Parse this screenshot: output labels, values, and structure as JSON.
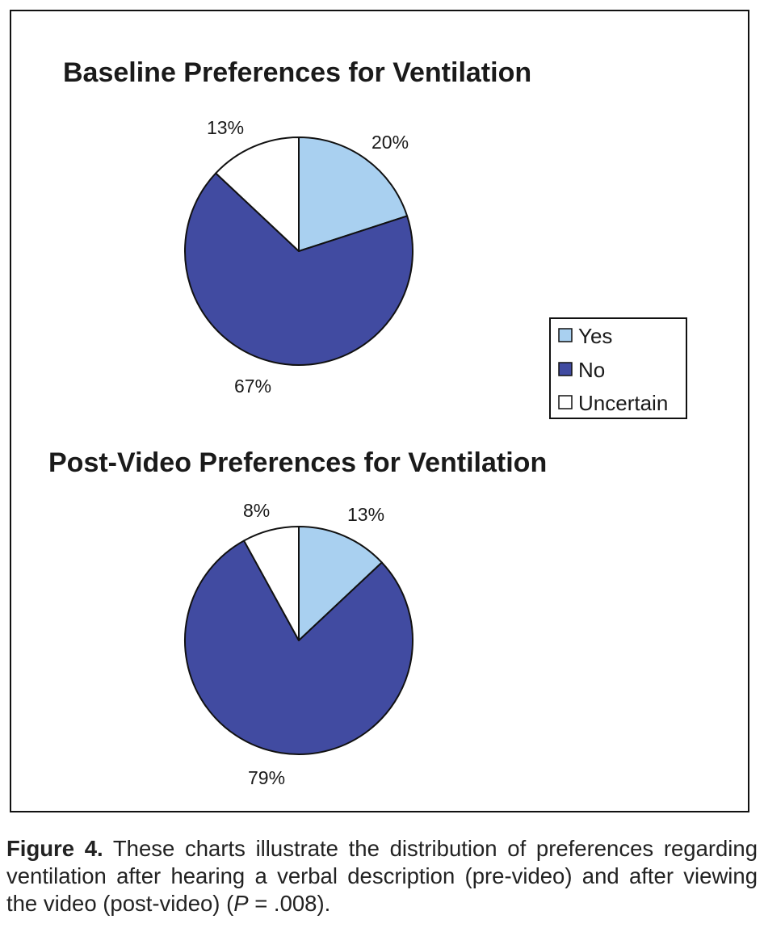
{
  "chart_data": [
    {
      "type": "pie",
      "title": "Baseline Preferences for Ventilation",
      "categories": [
        "Yes",
        "No",
        "Uncertain"
      ],
      "values": [
        20,
        67,
        13
      ],
      "labels": [
        "20%",
        "67%",
        "13%"
      ],
      "colors": [
        "#a9d0f0",
        "#414ba1",
        "#ffffff"
      ],
      "legend_position": "right"
    },
    {
      "type": "pie",
      "title": "Post-Video Preferences for Ventilation",
      "categories": [
        "Yes",
        "No",
        "Uncertain"
      ],
      "values": [
        13,
        79,
        8
      ],
      "labels": [
        "13%",
        "79%",
        "8%"
      ],
      "colors": [
        "#a9d0f0",
        "#414ba1",
        "#ffffff"
      ]
    }
  ],
  "legend": {
    "items": [
      {
        "label": "Yes",
        "color": "#a9d0f0"
      },
      {
        "label": "No",
        "color": "#414ba1"
      },
      {
        "label": "Uncertain",
        "color": "#ffffff"
      }
    ]
  },
  "caption": {
    "figure_label": "Figure 4.",
    "text_before_p": " These charts illustrate the distribution of preferences regarding ventilation after hearing a verbal description (pre-video) and after viewing the video (post-video) (",
    "p_symbol": "P",
    "text_after_p": " = .008)."
  }
}
